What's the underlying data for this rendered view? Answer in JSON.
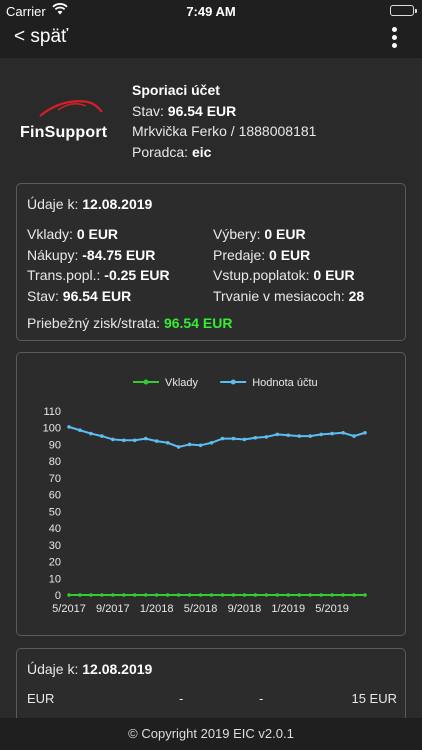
{
  "status_bar": {
    "carrier": "Carrier",
    "time": "7:49 AM"
  },
  "nav": {
    "back_label": "< späť"
  },
  "account": {
    "logo_text": "FinSupport",
    "title": "Sporiaci účet",
    "balance_label": "Stav:",
    "balance_value": "96.54 EUR",
    "owner": "Mrkvička Ferko / 1888008181",
    "advisor_label": "Poradca:",
    "advisor_value": "eic"
  },
  "summary": {
    "date_label": "Údaje k:",
    "date_value": "12.08.2019",
    "left": [
      {
        "label": "Vklady:",
        "value": "0 EUR"
      },
      {
        "label": "Nákupy:",
        "value": "-84.75 EUR"
      },
      {
        "label": "Trans.popl.:",
        "value": "-0.25 EUR"
      },
      {
        "label": "Stav:",
        "value": "96.54 EUR"
      }
    ],
    "right": [
      {
        "label": "Výbery:",
        "value": "0 EUR"
      },
      {
        "label": "Predaje:",
        "value": "0 EUR"
      },
      {
        "label": "Vstup.poplatok:",
        "value": "0 EUR"
      },
      {
        "label": "Trvanie v mesiacoch:",
        "value": "28"
      }
    ],
    "profit_label": "Priebežný zisk/strata:",
    "profit_value": "96.54 EUR",
    "profit_color": "#33ee33"
  },
  "chart_data": {
    "type": "line",
    "title": "",
    "xlabel": "",
    "ylabel": "",
    "ylim": [
      0,
      110
    ],
    "yticks": [
      0,
      10,
      20,
      30,
      40,
      50,
      60,
      70,
      80,
      90,
      100,
      110
    ],
    "xtick_labels": [
      "5/2017",
      "9/2017",
      "1/2018",
      "5/2018",
      "9/2018",
      "1/2019",
      "5/2019"
    ],
    "legend_position": "top",
    "grid": false,
    "x": [
      "5/2017",
      "6/2017",
      "7/2017",
      "8/2017",
      "9/2017",
      "10/2017",
      "11/2017",
      "12/2017",
      "1/2018",
      "2/2018",
      "3/2018",
      "4/2018",
      "5/2018",
      "6/2018",
      "7/2018",
      "8/2018",
      "9/2018",
      "10/2018",
      "11/2018",
      "12/2018",
      "1/2019",
      "2/2019",
      "3/2019",
      "4/2019",
      "5/2019",
      "6/2019",
      "7/2019",
      "8/2019"
    ],
    "series": [
      {
        "name": "Vklady",
        "color": "#33cc33",
        "values": [
          0,
          0,
          0,
          0,
          0,
          0,
          0,
          0,
          0,
          0,
          0,
          0,
          0,
          0,
          0,
          0,
          0,
          0,
          0,
          0,
          0,
          0,
          0,
          0,
          0,
          0,
          0,
          0
        ]
      },
      {
        "name": "Hodnota účtu",
        "color": "#5bbdf0",
        "values": [
          100.5,
          98.5,
          96.5,
          95,
          93,
          92.5,
          92.5,
          93.5,
          92,
          91,
          88.5,
          90,
          89.5,
          91,
          93.5,
          93.5,
          93,
          94,
          94.5,
          96,
          95.5,
          95,
          95,
          96,
          96.5,
          97,
          95,
          97
        ]
      }
    ]
  },
  "positions": {
    "date_label": "Údaje k:",
    "date_value": "12.08.2019",
    "row": {
      "currency": "EUR",
      "col2": "-",
      "col3": "-",
      "amount": "15 EUR"
    }
  },
  "footer": {
    "copyright": "© Copyright 2019 EIC v2.0.1"
  }
}
